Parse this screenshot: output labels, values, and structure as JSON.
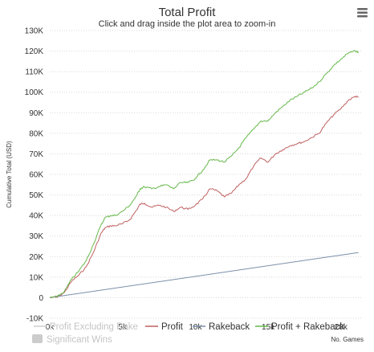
{
  "chart_data": {
    "type": "line",
    "title": "Total Profit",
    "subtitle": "Click and drag inside the plot area to zoom-in",
    "xlabel": "No. Games",
    "ylabel": "Cumulative Total (USD)",
    "xlim": [
      0,
      21500
    ],
    "ylim": [
      -10000,
      130000
    ],
    "x_ticks": [
      0,
      5000,
      10000,
      15000,
      20000
    ],
    "x_tick_labels": [
      "0k",
      "5k",
      "10k",
      "15k",
      "20k"
    ],
    "y_ticks": [
      -10000,
      0,
      10000,
      20000,
      30000,
      40000,
      50000,
      60000,
      70000,
      80000,
      90000,
      100000,
      110000,
      120000,
      130000
    ],
    "y_tick_labels": [
      "-10K",
      "0",
      "10K",
      "20K",
      "30K",
      "40K",
      "50K",
      "60K",
      "70K",
      "80K",
      "90K",
      "100K",
      "110K",
      "120K",
      "130K"
    ],
    "grid": true,
    "legend_position": "bottom",
    "series": [
      {
        "name": "Profit Excluding Rake",
        "color": "#aaaaaa",
        "visible": false,
        "x": [
          0,
          21200
        ],
        "y": [
          0,
          0
        ]
      },
      {
        "name": "Profit",
        "color": "#c06060",
        "visible": true,
        "x": [
          0,
          500,
          1000,
          1500,
          2000,
          2500,
          3000,
          3500,
          3800,
          4200,
          4500,
          5000,
          5500,
          6000,
          6200,
          6500,
          7000,
          7500,
          8000,
          8500,
          9000,
          9500,
          10000,
          10500,
          11000,
          11500,
          12000,
          12500,
          13000,
          13500,
          14000,
          14500,
          15000,
          15500,
          16000,
          16500,
          17000,
          17500,
          18000,
          18500,
          19000,
          19500,
          20000,
          20500,
          21000,
          21200
        ],
        "y": [
          0,
          200,
          2500,
          8000,
          11000,
          15000,
          22000,
          31000,
          34000,
          35000,
          35000,
          36000,
          38000,
          43000,
          45500,
          46000,
          44000,
          45000,
          44000,
          42000,
          44000,
          43000,
          45000,
          48000,
          53000,
          52000,
          49000,
          51000,
          55000,
          58000,
          64000,
          68000,
          66000,
          70000,
          72000,
          74000,
          75000,
          76000,
          78000,
          80000,
          85000,
          89000,
          92000,
          96000,
          98000,
          97500
        ]
      },
      {
        "name": "Rakeback",
        "color": "#7a8fa8",
        "visible": true,
        "x": [
          0,
          21200
        ],
        "y": [
          0,
          22000
        ]
      },
      {
        "name": "Profit + Rakeback",
        "color": "#66b84a",
        "visible": true,
        "x": [
          0,
          500,
          1000,
          1500,
          2000,
          2500,
          3000,
          3500,
          3800,
          4200,
          4500,
          5000,
          5500,
          6000,
          6200,
          6500,
          7000,
          7500,
          8000,
          8500,
          9000,
          9500,
          10000,
          10500,
          11000,
          11500,
          12000,
          12500,
          13000,
          13500,
          14000,
          14500,
          15000,
          15500,
          16000,
          16500,
          17000,
          17500,
          18000,
          18500,
          19000,
          19500,
          20000,
          20500,
          21000,
          21200
        ],
        "y": [
          0,
          500,
          3000,
          9000,
          13000,
          18000,
          26000,
          35000,
          39000,
          40000,
          40000,
          42000,
          45000,
          50000,
          53000,
          54000,
          53000,
          54000,
          55000,
          53000,
          56000,
          56000,
          58000,
          62000,
          67000,
          67000,
          66000,
          69000,
          73000,
          78000,
          82000,
          86000,
          86000,
          90000,
          93000,
          96000,
          98000,
          100000,
          102000,
          105000,
          109000,
          113000,
          116000,
          119000,
          120000,
          119500
        ]
      }
    ],
    "extra_legend": {
      "label": "Significant Wins",
      "color": "#cccccc",
      "visible": false
    }
  }
}
